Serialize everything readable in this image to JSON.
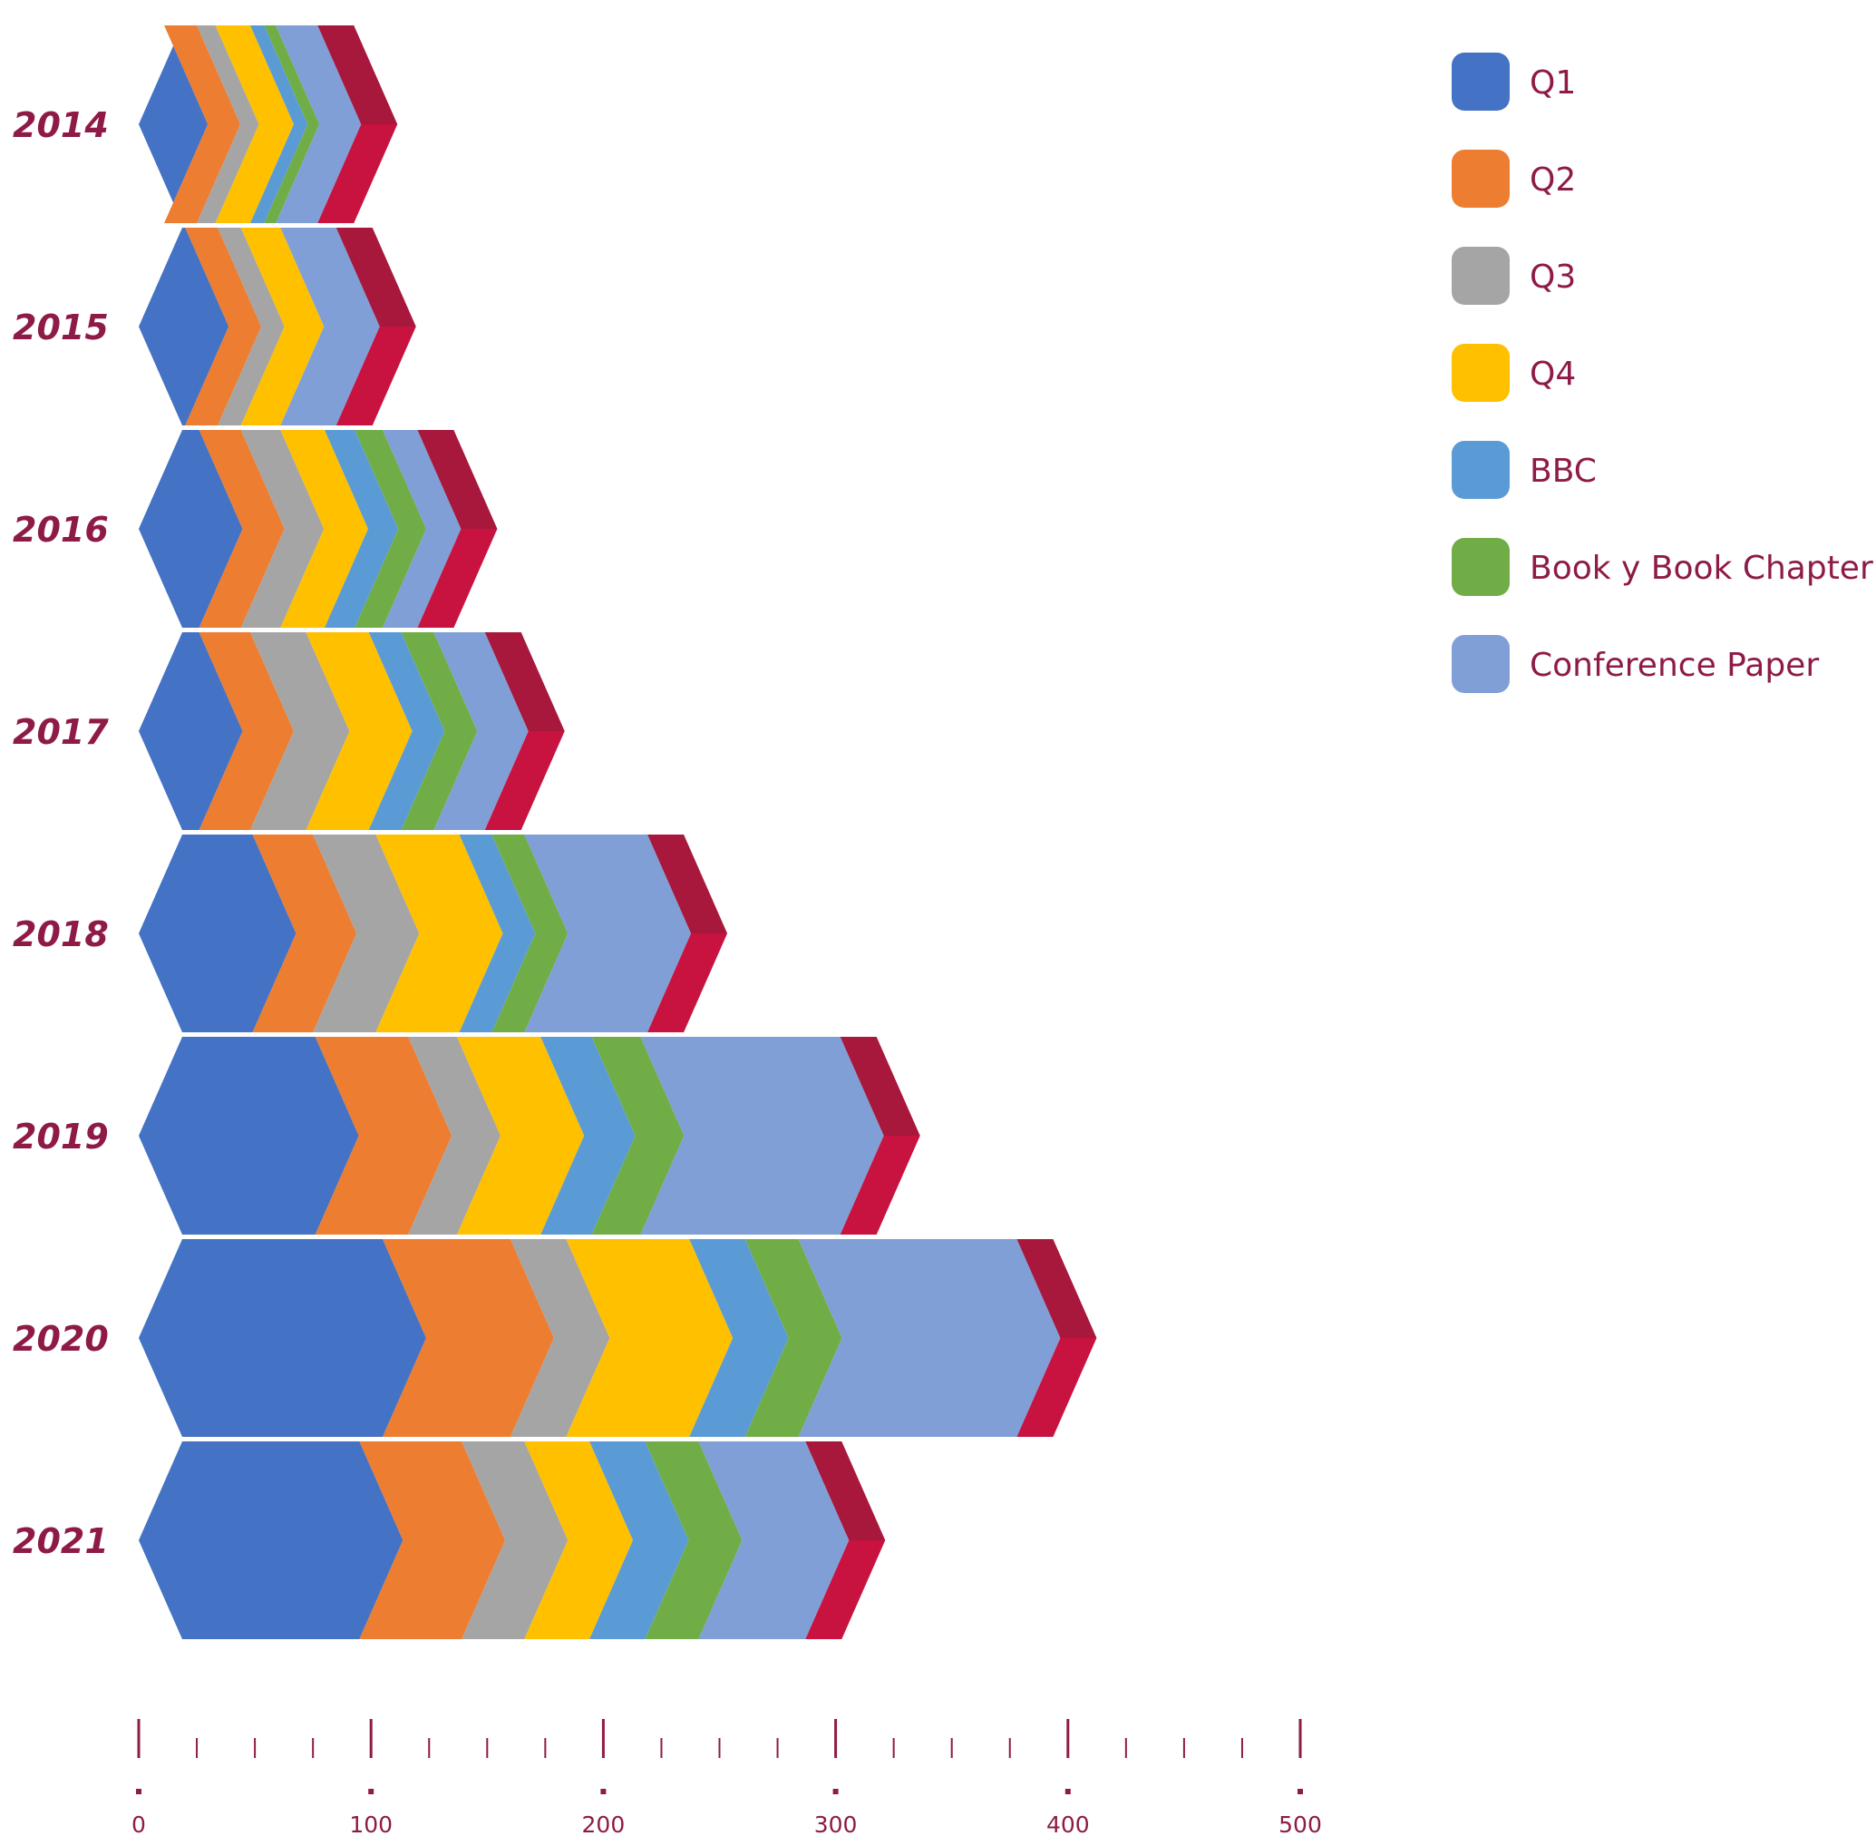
{
  "colors": {
    "text": "#8e1b47",
    "axis": "#8e1b47",
    "tip_dark": "#a8173c",
    "tip_light": "#c8123f",
    "series": [
      "#4472c4",
      "#ed7d31",
      "#a5a5a5",
      "#ffc000",
      "#5b9bd5",
      "#70ad47",
      "#7f9fd6"
    ]
  },
  "chart_data": {
    "type": "bar",
    "orientation": "horizontal",
    "stacked": true,
    "categories": [
      "2014",
      "2015",
      "2016",
      "2017",
      "2018",
      "2019",
      "2020",
      "2021"
    ],
    "series": [
      {
        "name": "Q1",
        "values": [
          11,
          20,
          26,
          26,
          49,
          76,
          105,
          95
        ]
      },
      {
        "name": "Q2",
        "values": [
          14,
          14,
          18,
          22,
          26,
          40,
          55,
          44
        ]
      },
      {
        "name": "Q3",
        "values": [
          8,
          10,
          17,
          24,
          27,
          21,
          24,
          27
        ]
      },
      {
        "name": "Q4",
        "values": [
          15,
          17,
          19,
          27,
          36,
          36,
          53,
          28
        ]
      },
      {
        "name": "BBC",
        "values": [
          6,
          0,
          13,
          14,
          14,
          22,
          24,
          24
        ]
      },
      {
        "name": "Book y Book Chapter",
        "values": [
          5,
          0,
          12,
          14,
          14,
          21,
          23,
          23
        ]
      },
      {
        "name": "Conference Paper",
        "values": [
          18,
          24,
          15,
          22,
          53,
          86,
          94,
          46
        ]
      }
    ],
    "xlim": [
      0,
      500
    ],
    "x_ticks": [
      "0",
      "100",
      "200",
      "300",
      "400",
      "500"
    ],
    "minor_ticks_per_major": 3,
    "legend_position": "top-right"
  }
}
